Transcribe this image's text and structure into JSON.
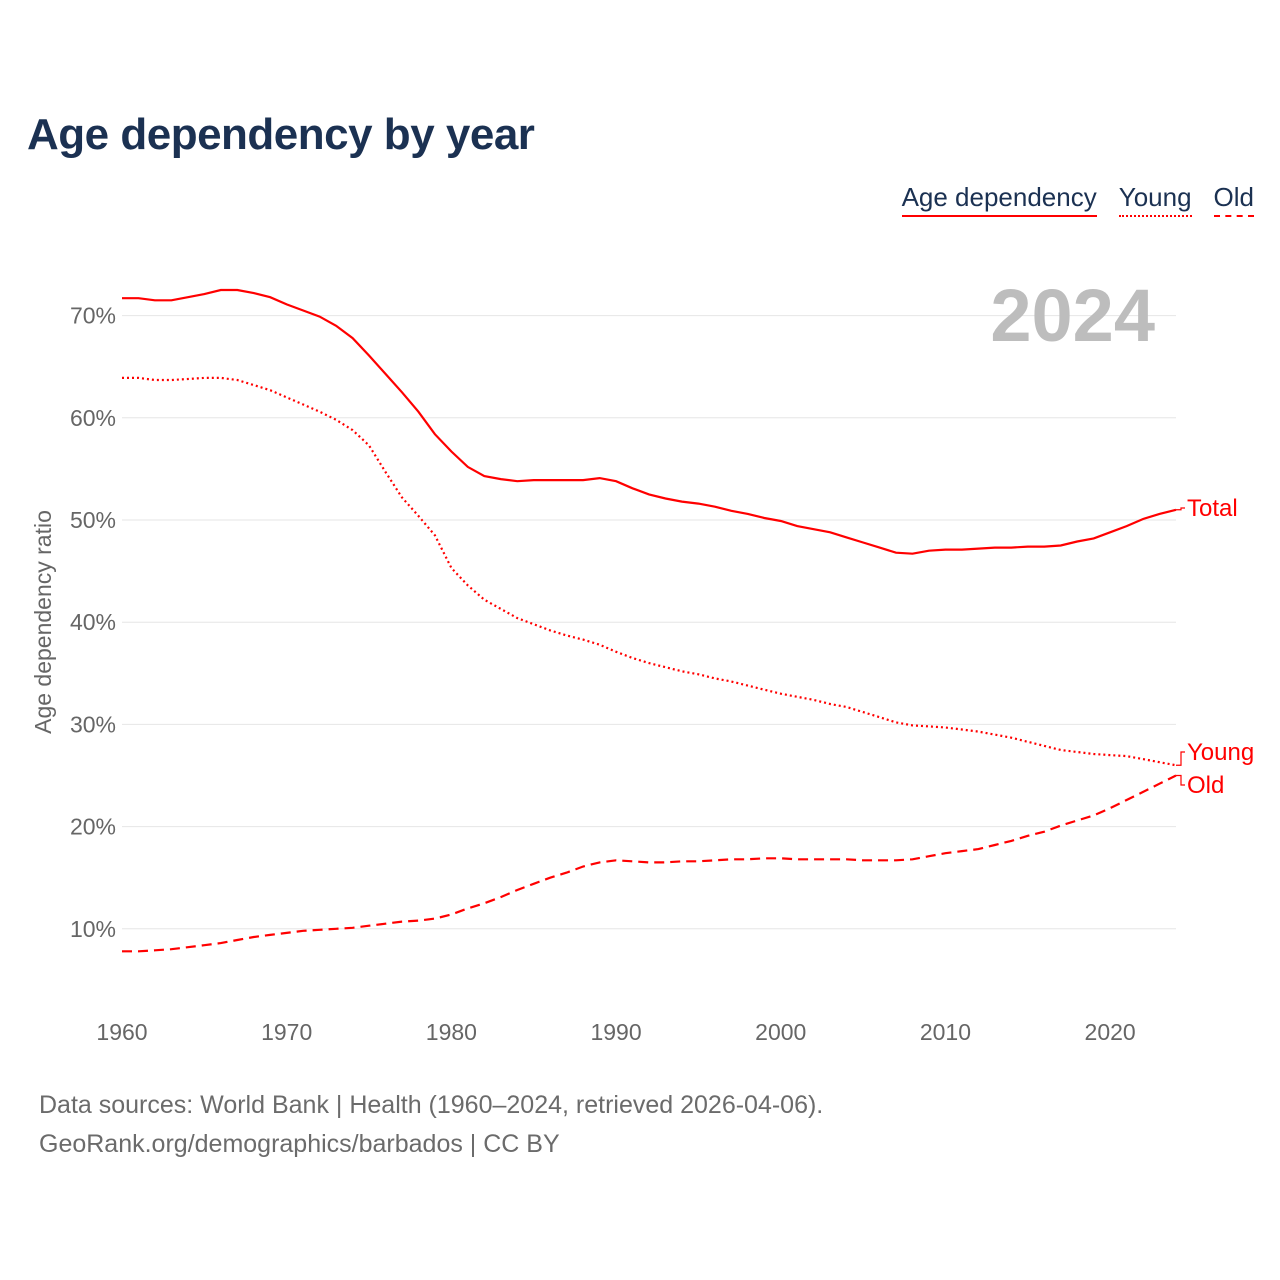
{
  "title": "Age dependency by year",
  "legend": [
    {
      "label": "Age dependency",
      "style": "solid"
    },
    {
      "label": "Young",
      "style": "dotted"
    },
    {
      "label": "Old",
      "style": "dashed"
    }
  ],
  "year_watermark": "2024",
  "footer": {
    "line1": "Data sources: World Bank | Health (1960–2024, retrieved 2026-04-06).",
    "line2": "GeoRank.org/demographics/barbados | CC BY"
  },
  "colors": {
    "series": "#ff0000",
    "title": "#1b3152",
    "axis_text": "#666666",
    "grid": "#e6e6e6",
    "watermark": "#bdbdbd"
  },
  "chart_data": {
    "type": "line",
    "title": "Age dependency by year",
    "xlabel": "",
    "ylabel": "Age dependency ratio",
    "xlim": [
      1960,
      2024
    ],
    "ylim": [
      0,
      75
    ],
    "grid": true,
    "legend_position": "top-right",
    "xticks": [
      1960,
      1970,
      1980,
      1990,
      2000,
      2010,
      2020
    ],
    "xtick_labels": [
      "1960",
      "1970",
      "1980",
      "1990",
      "2000",
      "2010",
      "2020"
    ],
    "yticks": [
      10,
      20,
      30,
      40,
      50,
      60,
      70
    ],
    "ytick_labels": [
      "10%",
      "20%",
      "30%",
      "40%",
      "50%",
      "60%",
      "70%"
    ],
    "x_start": 1960,
    "series": [
      {
        "name": "Total",
        "end_label": "Total",
        "dash": "solid",
        "values": [
          71.7,
          71.7,
          71.5,
          71.5,
          71.8,
          72.1,
          72.5,
          72.5,
          72.2,
          71.8,
          71.1,
          70.5,
          69.9,
          69.0,
          67.8,
          66.1,
          64.3,
          62.5,
          60.6,
          58.4,
          56.7,
          55.2,
          54.3,
          54.0,
          53.8,
          53.9,
          53.9,
          53.9,
          53.9,
          54.1,
          53.8,
          53.1,
          52.5,
          52.1,
          51.8,
          51.6,
          51.3,
          50.9,
          50.6,
          50.2,
          49.9,
          49.4,
          49.1,
          48.8,
          48.3,
          47.8,
          47.3,
          46.8,
          46.7,
          47.0,
          47.1,
          47.1,
          47.2,
          47.3,
          47.3,
          47.4,
          47.4,
          47.5,
          47.9,
          48.2,
          48.8,
          49.4,
          50.1,
          50.6,
          51.0
        ]
      },
      {
        "name": "Young",
        "end_label": "Young",
        "dash": "dotted",
        "values": [
          63.9,
          63.9,
          63.7,
          63.7,
          63.8,
          63.9,
          63.9,
          63.7,
          63.2,
          62.7,
          62.0,
          61.3,
          60.6,
          59.8,
          58.8,
          57.3,
          54.7,
          52.2,
          50.4,
          48.5,
          45.3,
          43.6,
          42.2,
          41.3,
          40.4,
          39.8,
          39.2,
          38.7,
          38.3,
          37.8,
          37.1,
          36.5,
          36.0,
          35.6,
          35.2,
          34.9,
          34.5,
          34.2,
          33.8,
          33.4,
          33.0,
          32.7,
          32.4,
          32.0,
          31.7,
          31.2,
          30.7,
          30.2,
          29.9,
          29.8,
          29.7,
          29.5,
          29.3,
          29.0,
          28.7,
          28.3,
          27.9,
          27.5,
          27.3,
          27.1,
          27.0,
          26.9,
          26.6,
          26.3,
          26.0
        ]
      },
      {
        "name": "Old",
        "end_label": "Old",
        "dash": "dashed",
        "values": [
          7.8,
          7.8,
          7.9,
          8.0,
          8.2,
          8.4,
          8.6,
          8.9,
          9.2,
          9.4,
          9.6,
          9.8,
          9.9,
          10.0,
          10.1,
          10.3,
          10.5,
          10.7,
          10.8,
          11.0,
          11.4,
          12.0,
          12.5,
          13.1,
          13.8,
          14.4,
          15.0,
          15.5,
          16.1,
          16.5,
          16.7,
          16.6,
          16.5,
          16.5,
          16.6,
          16.6,
          16.7,
          16.8,
          16.8,
          16.9,
          16.9,
          16.8,
          16.8,
          16.8,
          16.8,
          16.7,
          16.7,
          16.7,
          16.8,
          17.1,
          17.4,
          17.6,
          17.8,
          18.2,
          18.6,
          19.1,
          19.5,
          20.1,
          20.6,
          21.1,
          21.8,
          22.6,
          23.4,
          24.2,
          25.0
        ]
      }
    ]
  }
}
